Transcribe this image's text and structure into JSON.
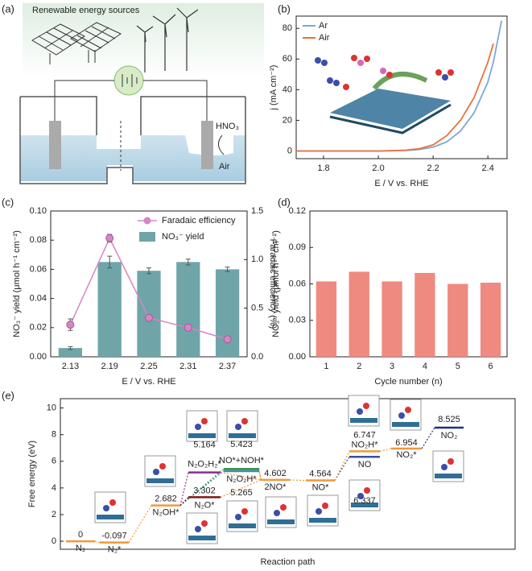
{
  "panel_labels": [
    "(a)",
    "(b)",
    "(c)",
    "(d)",
    "(e)"
  ],
  "diagram": {
    "title": "Renewable energy sources",
    "acid": "HNO₃",
    "gas": "Air"
  },
  "chart_data": [
    {
      "type": "line",
      "xlabel": "E / V vs. RHE",
      "ylabel": "j (mA cm⁻²)",
      "x": [
        1.7,
        1.9,
        2.0,
        2.1,
        2.15,
        2.2,
        2.25,
        2.3,
        2.35,
        2.4,
        2.42,
        2.45
      ],
      "series": [
        {
          "name": "Ar",
          "color": "#7fa7d6",
          "values": [
            0,
            0,
            0,
            0.3,
            1,
            2.5,
            6,
            13,
            25,
            45,
            58,
            85
          ]
        },
        {
          "name": "Air",
          "color": "#e8713c",
          "values": [
            0,
            0,
            0,
            0.5,
            1.5,
            4,
            10,
            20,
            35,
            58,
            70,
            null
          ]
        }
      ],
      "xlim": [
        1.7,
        2.47
      ],
      "xticks": [
        1.8,
        {
          "value": 2,
          "label": "2.0"
        },
        2.2,
        2.4
      ],
      "ylim": [
        -5,
        88
      ],
      "yticks": [
        0,
        20,
        40,
        60,
        80
      ]
    },
    {
      "type": "bar-line",
      "xlabel": "E / V vs. RHE",
      "ylabel": "NO₃⁻ yield (μmol h⁻¹ cm⁻²)",
      "y2label": "Faradaic efficiency (%)",
      "categories": [
        "2.13",
        "2.19",
        "2.25",
        "2.31",
        "2.37"
      ],
      "series": [
        {
          "name": "NO₃⁻ yield",
          "type": "bar",
          "color": "#6fa5a8",
          "values": [
            0.006,
            0.065,
            0.059,
            0.065,
            0.06
          ],
          "errors": [
            0.001,
            0.004,
            0.002,
            0.002,
            0.0015
          ]
        },
        {
          "name": "Faradaic efficiency",
          "type": "line",
          "axis": "y2",
          "color": "#d685c7",
          "values": [
            0.33,
            1.22,
            0.4,
            0.3,
            0.18
          ],
          "errors": [
            0.06,
            0.04,
            0.02,
            0.02,
            0.02
          ]
        }
      ],
      "ylim": [
        0,
        0.1
      ],
      "yticks": [
        {
          "value": 0,
          "label": "0.00"
        },
        0.02,
        0.04,
        0.06,
        0.08,
        {
          "value": 0.1,
          "label": "0.10"
        }
      ],
      "y2lim": [
        0,
        1.5
      ],
      "y2ticks": [
        {
          "value": 0,
          "label": "0.0"
        },
        0.5,
        {
          "value": 1,
          "label": "1.0"
        },
        1.5
      ]
    },
    {
      "type": "bar",
      "xlabel": "Cycle number (n)",
      "ylabel": "NO₃⁻ yield (μmol h⁻¹ cm⁻²)",
      "categories": [
        "1",
        "2",
        "3",
        "4",
        "5",
        "6"
      ],
      "values": [
        0.062,
        0.07,
        0.062,
        0.069,
        0.06,
        0.061
      ],
      "color": "#ee8a7f",
      "ylim": [
        0,
        0.12
      ],
      "yticks": [
        {
          "value": 0,
          "label": "0.00"
        },
        0.03,
        0.06,
        0.09,
        0.12
      ]
    },
    {
      "type": "energy",
      "xlabel": "Reaction path",
      "ylabel": "Free energy (eV)",
      "levels": [
        {
          "name": "N₂",
          "value": 0,
          "color": "#f0973a"
        },
        {
          "name": "N₂*",
          "value": -0.097,
          "color": "#f0973a"
        },
        {
          "name": "N₂OH*",
          "value": 2.682,
          "color": "#f0973a"
        },
        {
          "name": "N₂O₂H₂*",
          "value": 5.164,
          "color": "#8a2b8f"
        },
        {
          "name": "NO*+NOH*",
          "value": 5.423,
          "color": "#2e8b3e"
        },
        {
          "name": "N₂O₂H*",
          "value": 5.265,
          "color": "#3d8fa6"
        },
        {
          "name": "N₂O*",
          "value": 3.302,
          "color": "#7a1a1a"
        },
        {
          "name": "2NO*",
          "value": 4.602,
          "color": "#f0973a"
        },
        {
          "name": "NO*",
          "value": 4.564,
          "color": "#f0973a"
        },
        {
          "name": "NO",
          "value": 6.337,
          "color": "#3a4fa0"
        },
        {
          "name": "NO₂H*",
          "value": 6.747,
          "color": "#f0973a"
        },
        {
          "name": "NO₂*",
          "value": 6.954,
          "color": "#f0973a"
        },
        {
          "name": "NO₂",
          "value": 8.525,
          "color": "#1f2f80"
        }
      ],
      "ylim": [
        -0.6,
        10.7
      ],
      "yticks": [
        0,
        2,
        4,
        6,
        8,
        10
      ]
    }
  ]
}
